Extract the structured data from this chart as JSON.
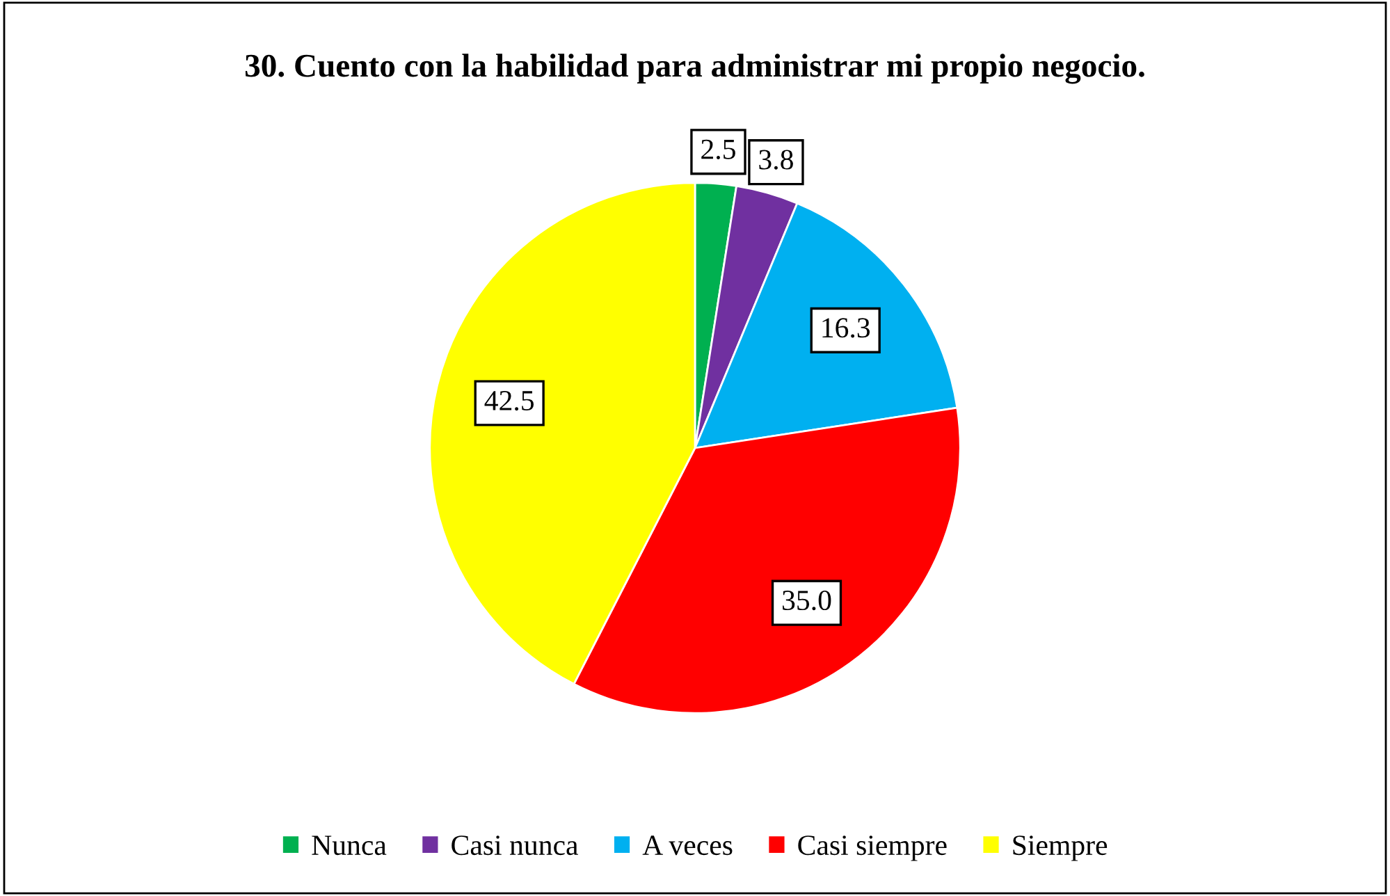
{
  "chart_data": {
    "type": "pie",
    "title": "30. Cuento con la habilidad para administrar mi propio negocio.",
    "categories": [
      "Nunca",
      "Casi nunca",
      "A veces",
      "Casi siempre",
      "Siempre"
    ],
    "values": [
      2.5,
      3.8,
      16.3,
      35.0,
      42.5
    ],
    "colors": [
      "#00b050",
      "#7030a0",
      "#00b0f0",
      "#ff0000",
      "#ffff00"
    ],
    "value_labels": [
      "2.5",
      "3.8",
      "16.3",
      "35.0",
      "42.5"
    ],
    "legend": "bottom"
  }
}
